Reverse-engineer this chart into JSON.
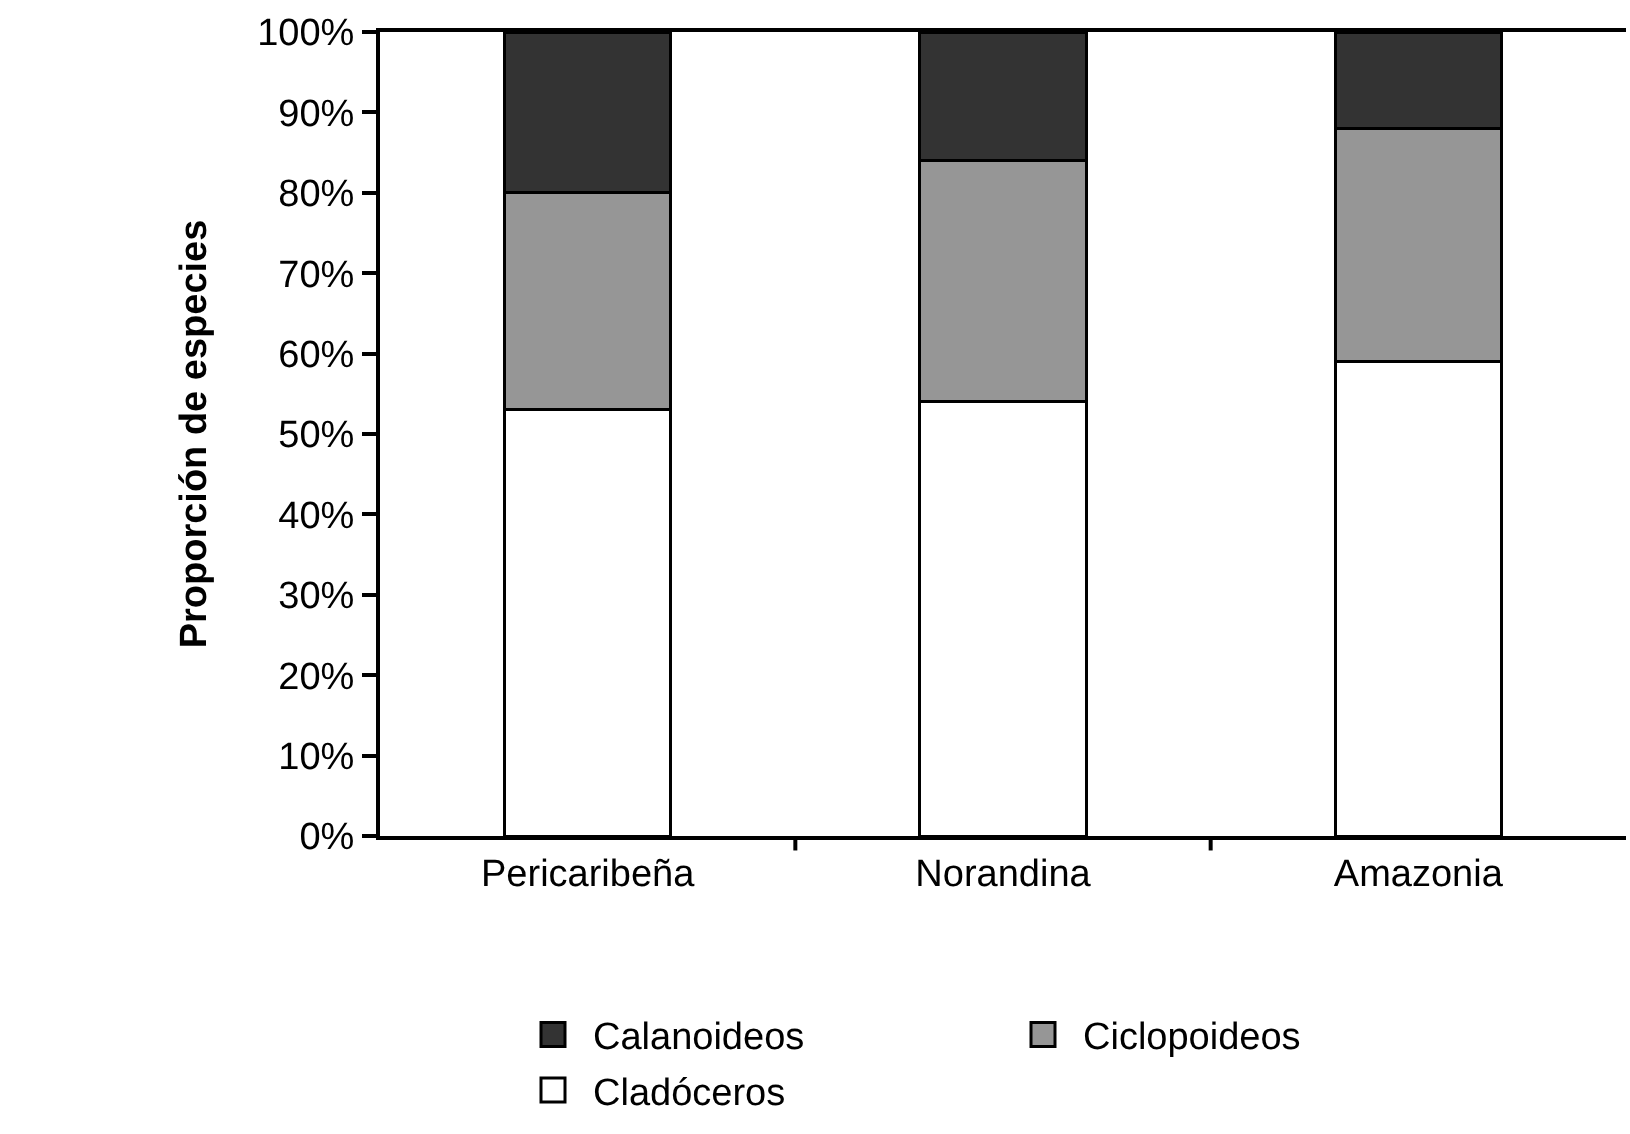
{
  "chart_data": {
    "type": "bar",
    "stacked": true,
    "ylabel": "Proporción de especies",
    "categories": [
      "Pericaribeña",
      "Norandina",
      "Amazonia"
    ],
    "series": [
      {
        "name": "Cladóceros",
        "color": "#ffffff",
        "values": [
          53,
          54,
          59
        ]
      },
      {
        "name": "Ciclopoideos",
        "color": "#969696",
        "values": [
          27,
          30,
          29
        ]
      },
      {
        "name": "Calanoideos",
        "color": "#333333",
        "values": [
          20,
          16,
          12
        ]
      }
    ],
    "ylim": [
      0,
      100
    ],
    "yticks": [
      {
        "value": 0,
        "label": "0%"
      },
      {
        "value": 10,
        "label": "10%"
      },
      {
        "value": 20,
        "label": "20%"
      },
      {
        "value": 30,
        "label": "30%"
      },
      {
        "value": 40,
        "label": "40%"
      },
      {
        "value": 50,
        "label": "50%"
      },
      {
        "value": 60,
        "label": "60%"
      },
      {
        "value": 70,
        "label": "70%"
      },
      {
        "value": 80,
        "label": "80%"
      },
      {
        "value": 90,
        "label": "90%"
      },
      {
        "value": 100,
        "label": "100%"
      }
    ],
    "grid": false,
    "legend": "bottom"
  }
}
